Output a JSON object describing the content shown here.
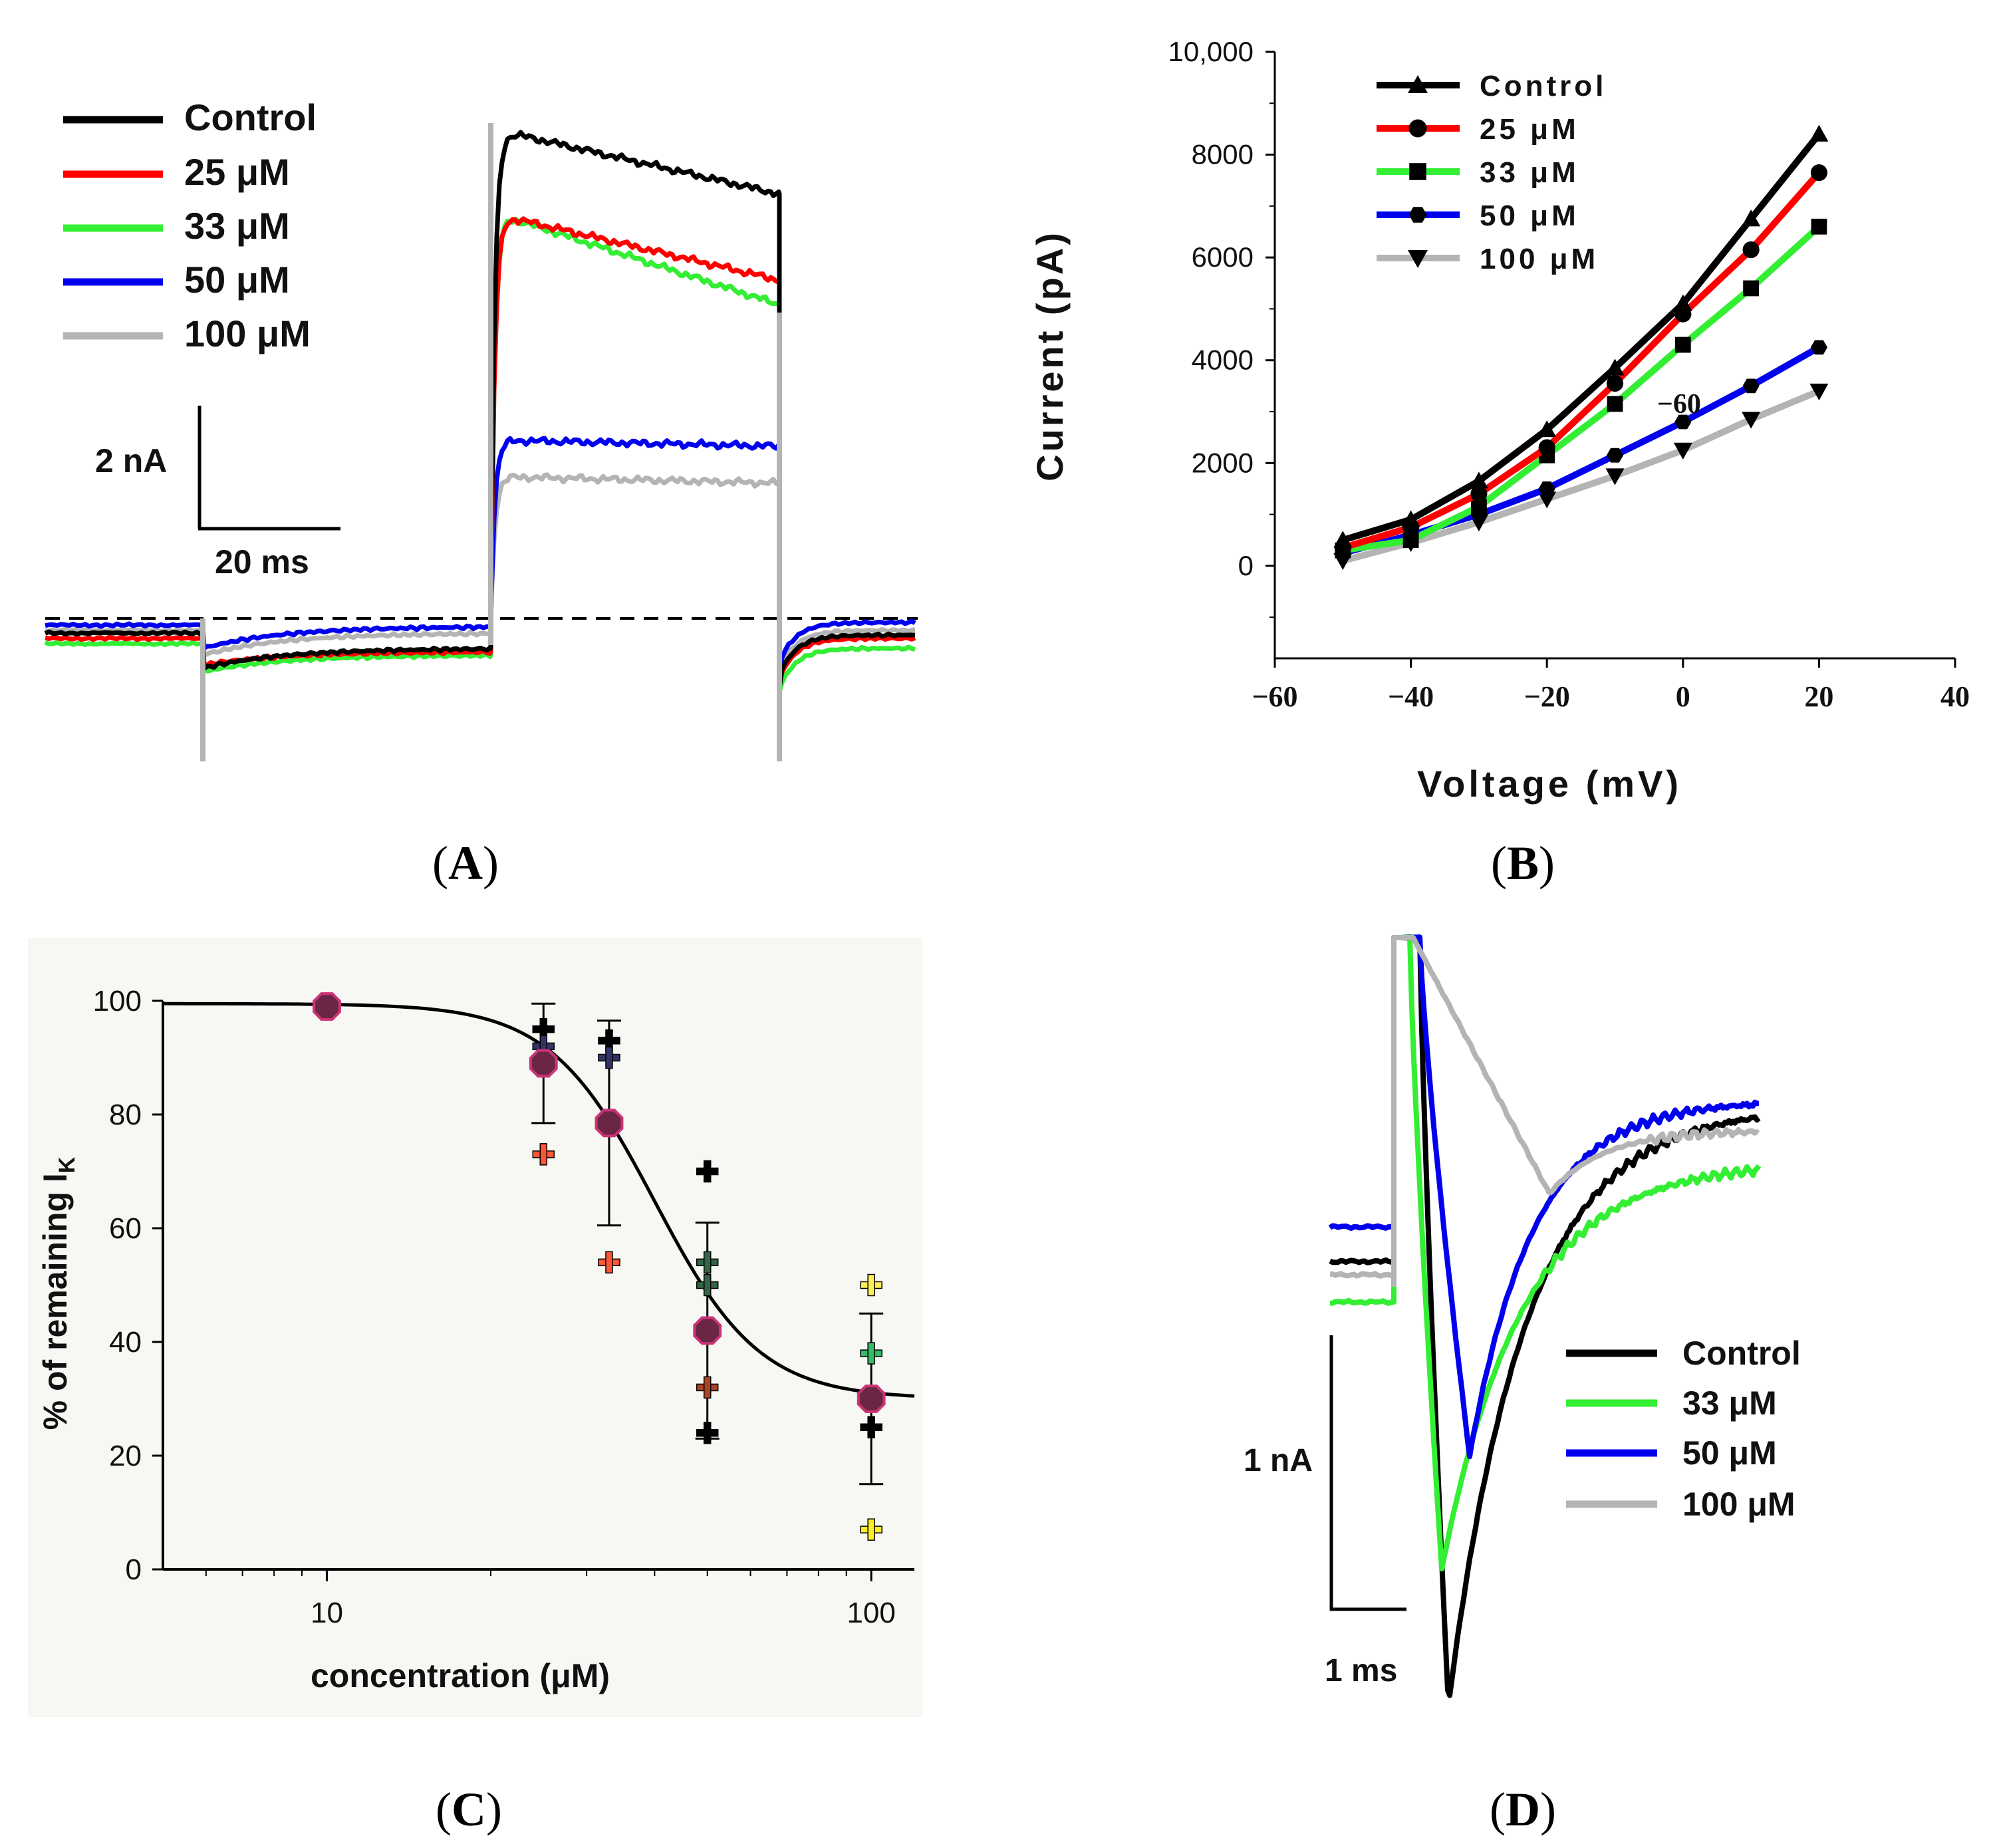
{
  "colors": {
    "black": "#000000",
    "red": "#ff0000",
    "green": "#33ee33",
    "blue": "#0000ee",
    "gray": "#b4b4b4",
    "panelC_bg": "#f7f7f3",
    "marker_fill": "#6b2646",
    "marker_edge": "#cc3377"
  },
  "panels": {
    "A": {
      "label": "A"
    },
    "B": {
      "label": "B"
    },
    "C": {
      "label": "C"
    },
    "D": {
      "label": "D"
    }
  },
  "chart_data": [
    {
      "id": "A",
      "type": "line",
      "title": "",
      "legend_position": "top-left",
      "legend": [
        {
          "name": "Control",
          "color": "#000000"
        },
        {
          "name": "25 μM",
          "color": "#ff0000"
        },
        {
          "name": "33 μM",
          "color": "#33ee33"
        },
        {
          "name": "50 μM",
          "color": "#0000ee"
        },
        {
          "name": "100 μM",
          "color": "#b4b4b4"
        }
      ],
      "scale_bar": {
        "current": "2 nA",
        "time": "20 ms"
      },
      "steady_currents_nA": {
        "Control": 6.9,
        "25 μM": 5.5,
        "33 μM": 5.1,
        "50 μM": 2.8,
        "100 μM": 2.2
      }
    },
    {
      "id": "B",
      "type": "line",
      "xlabel": "Voltage (mV)",
      "ylabel": "Current (pA)",
      "xlim": [
        -60,
        40
      ],
      "ylim": [
        -1800,
        10000
      ],
      "xticks": [
        "−60",
        "−40",
        "−20",
        "0",
        "20",
        "40"
      ],
      "yticks": [
        "0",
        "2000",
        "4000",
        "6000",
        "8000",
        "10,000"
      ],
      "legend_position": "top-left",
      "x": [
        -50,
        -40,
        -30,
        -20,
        -10,
        0,
        10,
        20
      ],
      "series": [
        {
          "name": "Control",
          "color": "#000000",
          "marker": "triangle-up",
          "values": [
            500,
            900,
            1650,
            2650,
            3850,
            5100,
            6750,
            8400
          ]
        },
        {
          "name": "25 μM",
          "color": "#ff0000",
          "marker": "circle",
          "values": [
            350,
            750,
            1400,
            2300,
            3550,
            4900,
            6150,
            7650
          ]
        },
        {
          "name": "33 μM",
          "color": "#33ee33",
          "marker": "square",
          "values": [
            300,
            500,
            1150,
            2150,
            3150,
            4300,
            5400,
            6600
          ]
        },
        {
          "name": "50 μM",
          "color": "#0000ee",
          "marker": "hexagon",
          "values": [
            250,
            600,
            1000,
            1500,
            2150,
            2800,
            3500,
            4250
          ]
        },
        {
          "name": "100 μM",
          "color": "#b4b4b4",
          "marker": "triangle-down",
          "values": [
            100,
            450,
            850,
            1300,
            1750,
            2250,
            2850,
            3400
          ]
        }
      ],
      "annotations": [
        {
          "text": "−60",
          "x": 0,
          "y": 3100
        }
      ]
    },
    {
      "id": "C",
      "type": "scatter",
      "xlabel": "concentration (μM)",
      "ylabel": "% of remaining I",
      "ylabel_sub": "K",
      "xscale": "log",
      "xlim": [
        5,
        120
      ],
      "ylim": [
        0,
        100
      ],
      "xticks": [
        "10",
        "100"
      ],
      "yticks": [
        "0",
        "20",
        "40",
        "60",
        "80",
        "100"
      ],
      "means": [
        {
          "x": 10,
          "y": 99,
          "err": 0
        },
        {
          "x": 25,
          "y": 89,
          "err": 10.5
        },
        {
          "x": 33,
          "y": 78.5,
          "err": 18
        },
        {
          "x": 50,
          "y": 42,
          "err": 19
        },
        {
          "x": 100,
          "y": 30,
          "err": 15
        }
      ],
      "individual_points": [
        {
          "x": 25,
          "y": 95,
          "color": "#000000"
        },
        {
          "x": 25,
          "y": 92,
          "color": "#333366"
        },
        {
          "x": 25,
          "y": 73,
          "color": "#ff5533"
        },
        {
          "x": 33,
          "y": 93,
          "color": "#000000"
        },
        {
          "x": 33,
          "y": 90,
          "color": "#333366"
        },
        {
          "x": 33,
          "y": 54,
          "color": "#ff5533"
        },
        {
          "x": 50,
          "y": 70,
          "color": "#000000"
        },
        {
          "x": 50,
          "y": 54,
          "color": "#336644"
        },
        {
          "x": 50,
          "y": 50,
          "color": "#336644"
        },
        {
          "x": 50,
          "y": 32,
          "color": "#aa4422"
        },
        {
          "x": 50,
          "y": 24,
          "color": "#000000"
        },
        {
          "x": 100,
          "y": 50,
          "color": "#ffee55"
        },
        {
          "x": 100,
          "y": 38,
          "color": "#33bb66"
        },
        {
          "x": 100,
          "y": 25,
          "color": "#000000"
        },
        {
          "x": 100,
          "y": 7,
          "color": "#ffee22"
        }
      ],
      "fit": {
        "top": 99.5,
        "bottom": 30,
        "ic50": 40,
        "hill": 4.5
      }
    },
    {
      "id": "D",
      "type": "line",
      "title": "",
      "legend_position": "bottom-right",
      "legend": [
        {
          "name": "Control",
          "color": "#000000"
        },
        {
          "name": "33 μM",
          "color": "#33ee33"
        },
        {
          "name": "50 μM",
          "color": "#0000ee"
        },
        {
          "name": "100 μM",
          "color": "#b4b4b4"
        }
      ],
      "scale_bar": {
        "current": "1 nA",
        "time": "1 ms"
      }
    }
  ]
}
